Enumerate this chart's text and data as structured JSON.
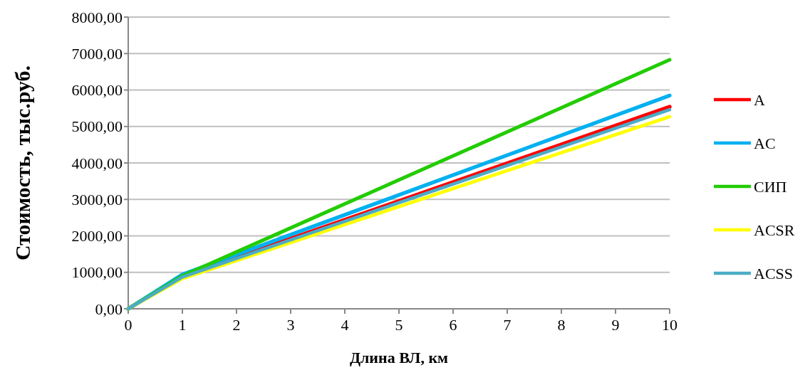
{
  "chart_data": {
    "type": "line",
    "xlabel": "Длина ВЛ, км",
    "ylabel": "Стоимость, тыс.руб.",
    "x": [
      0,
      1,
      10
    ],
    "xlim": [
      0,
      10
    ],
    "xticks": [
      0,
      1,
      2,
      3,
      4,
      5,
      6,
      7,
      8,
      9,
      10
    ],
    "ylim": [
      0,
      8000
    ],
    "yticks": [
      {
        "value": 0,
        "label": "0,00"
      },
      {
        "value": 1000,
        "label": "1000,00"
      },
      {
        "value": 2000,
        "label": "2000,00"
      },
      {
        "value": 3000,
        "label": "3000,00"
      },
      {
        "value": 4000,
        "label": "4000,00"
      },
      {
        "value": 5000,
        "label": "5000,00"
      },
      {
        "value": 6000,
        "label": "6000,00"
      },
      {
        "value": 7000,
        "label": "7000,00"
      },
      {
        "value": 8000,
        "label": "8000,00"
      }
    ],
    "grid": "y",
    "legend": "right",
    "marker": "none",
    "line_style": "solid",
    "series": [
      {
        "name": "A",
        "color": "#ff0000",
        "values": [
          0,
          890,
          5540
        ]
      },
      {
        "name": "AC",
        "color": "#00b0f0",
        "values": [
          0,
          940,
          5850
        ]
      },
      {
        "name": "СИП",
        "color": "#22cc00",
        "values": [
          0,
          900,
          6830
        ]
      },
      {
        "name": "ACSR",
        "color": "#ffff00",
        "values": [
          0,
          830,
          5270
        ]
      },
      {
        "name": "ACSS",
        "color": "#4bacc6",
        "values": [
          0,
          870,
          5460
        ]
      }
    ]
  }
}
